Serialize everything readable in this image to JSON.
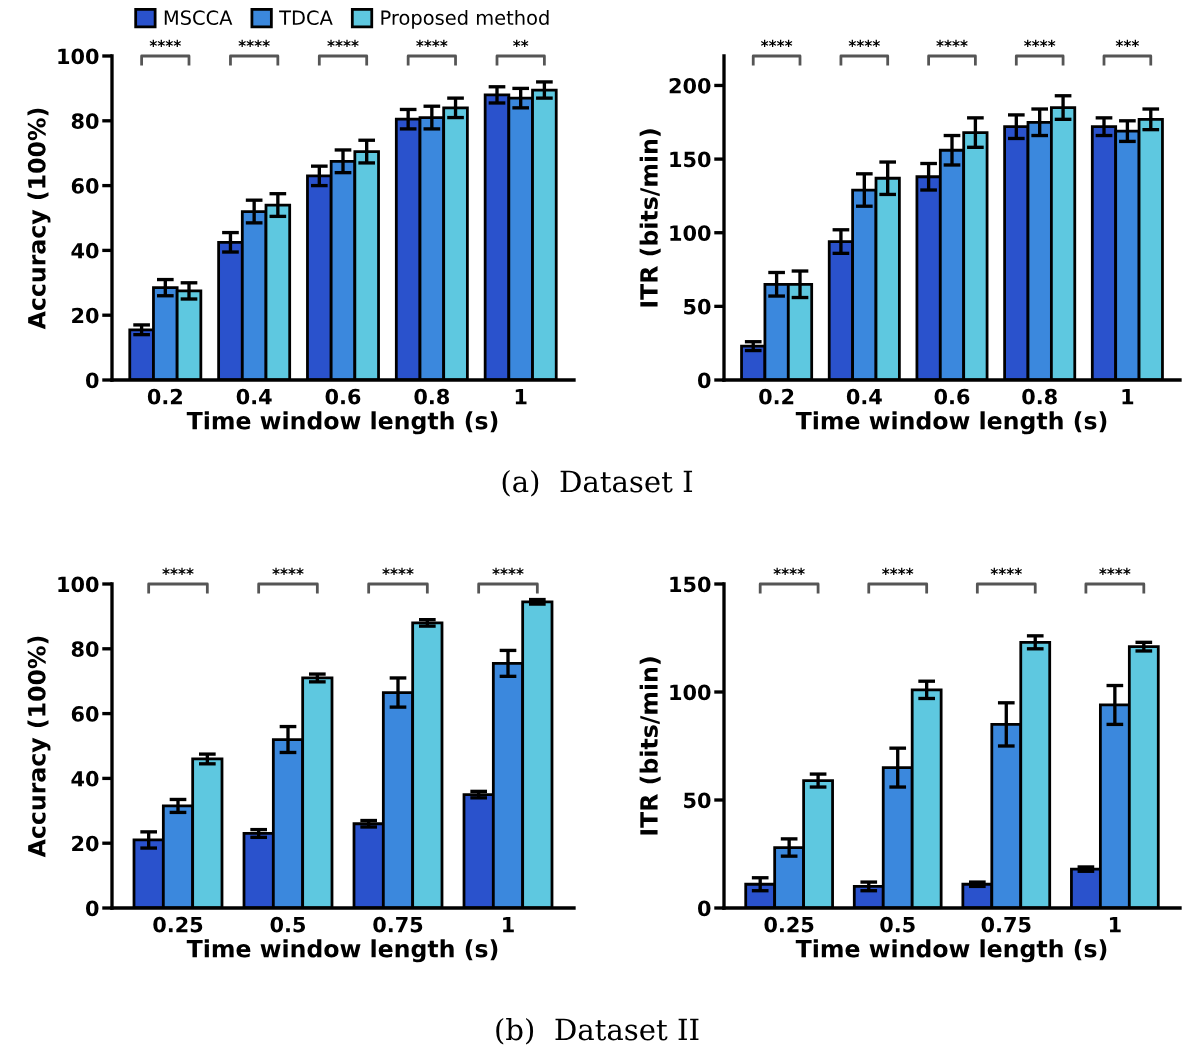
{
  "chart_data": [
    {
      "type": "bar",
      "ylabel": "Accuracy (100%)",
      "xlabel": "Time window length (s)",
      "categories": [
        "0.2",
        "0.4",
        "0.6",
        "0.8",
        "1"
      ],
      "ylim": [
        0,
        100
      ],
      "yticks": [
        0,
        20,
        40,
        60,
        80,
        100
      ],
      "grid": false,
      "legend": "top",
      "series": [
        {
          "name": "MSCCA",
          "color": "#2a52cc",
          "values": [
            15.5,
            42.5,
            63,
            80.5,
            88
          ],
          "errors": [
            1.5,
            3,
            3,
            3,
            2.5
          ]
        },
        {
          "name": "TDCA",
          "color": "#3b88dd",
          "values": [
            28.5,
            52,
            67.5,
            81,
            87
          ],
          "errors": [
            2.5,
            3.5,
            3.5,
            3.5,
            3
          ]
        },
        {
          "name": "Proposed method",
          "color": "#5ec8e0",
          "values": [
            27.5,
            54,
            70.5,
            84,
            89.5
          ],
          "errors": [
            2.5,
            3.5,
            3.5,
            3,
            2.5
          ]
        }
      ],
      "annotations": [
        "****",
        "****",
        "****",
        "****",
        "**",
        "(a)  Dataset I"
      ]
    },
    {
      "type": "bar",
      "ylabel": "ITR (bits/min)",
      "xlabel": "Time window length (s)",
      "categories": [
        "0.2",
        "0.4",
        "0.6",
        "0.8",
        "1"
      ],
      "ylim": [
        0,
        220
      ],
      "yticks": [
        0,
        50,
        100,
        150,
        200
      ],
      "grid": false,
      "series": [
        {
          "color": "#2a52cc",
          "values": [
            23,
            94,
            138,
            172,
            172
          ],
          "errors": [
            3,
            8,
            9,
            8,
            6
          ]
        },
        {
          "color": "#3b88dd",
          "values": [
            65,
            129,
            156,
            175,
            169
          ],
          "errors": [
            8,
            11,
            10,
            9,
            7
          ]
        },
        {
          "color": "#5ec8e0",
          "values": [
            65,
            137,
            168,
            185,
            177
          ],
          "errors": [
            9,
            11,
            10,
            8,
            7
          ]
        }
      ],
      "annotations": [
        "****",
        "****",
        "****",
        "****",
        "***"
      ]
    },
    {
      "type": "bar",
      "ylabel": "Accuracy (100%)",
      "xlabel": "Time window length (s)",
      "categories": [
        "0.25",
        "0.5",
        "0.75",
        "1"
      ],
      "ylim": [
        0,
        100
      ],
      "yticks": [
        0,
        20,
        40,
        60,
        80,
        100
      ],
      "grid": false,
      "series": [
        {
          "color": "#2a52cc",
          "values": [
            21,
            23,
            26,
            35
          ],
          "errors": [
            2.5,
            1.2,
            1,
            1
          ]
        },
        {
          "color": "#3b88dd",
          "values": [
            31.5,
            52,
            66.5,
            75.5
          ],
          "errors": [
            2,
            4,
            4.5,
            4
          ]
        },
        {
          "color": "#5ec8e0",
          "values": [
            46,
            71,
            88,
            94.5
          ],
          "errors": [
            1.5,
            1.2,
            1,
            0.7
          ]
        }
      ],
      "annotations": [
        "****",
        "****",
        "****",
        "****",
        "(b)  Dataset II"
      ]
    },
    {
      "type": "bar",
      "ylabel": "ITR (bits/min)",
      "xlabel": "Time window length (s)",
      "categories": [
        "0.25",
        "0.5",
        "0.75",
        "1"
      ],
      "ylim": [
        0,
        150
      ],
      "yticks": [
        0,
        50,
        100,
        150
      ],
      "grid": false,
      "series": [
        {
          "color": "#2a52cc",
          "values": [
            11,
            10,
            11,
            18
          ],
          "errors": [
            3,
            2,
            1,
            1
          ]
        },
        {
          "color": "#3b88dd",
          "values": [
            28,
            65,
            85,
            94
          ],
          "errors": [
            4,
            9,
            10,
            9
          ]
        },
        {
          "color": "#5ec8e0",
          "values": [
            59,
            101,
            123,
            121
          ],
          "errors": [
            3,
            4,
            3,
            2
          ]
        }
      ],
      "annotations": [
        "****",
        "****",
        "****",
        "****"
      ]
    }
  ]
}
